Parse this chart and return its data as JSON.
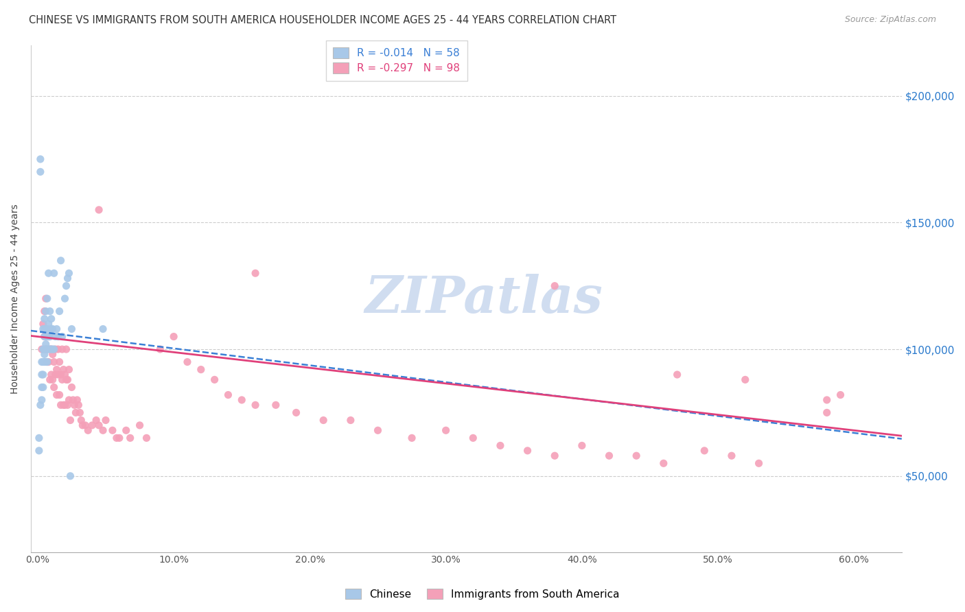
{
  "title": "CHINESE VS IMMIGRANTS FROM SOUTH AMERICA HOUSEHOLDER INCOME AGES 25 - 44 YEARS CORRELATION CHART",
  "source": "Source: ZipAtlas.com",
  "ylabel": "Householder Income Ages 25 - 44 years",
  "xlabel_ticks": [
    "0.0%",
    "10.0%",
    "20.0%",
    "30.0%",
    "40.0%",
    "50.0%",
    "60.0%"
  ],
  "xlabel_vals": [
    0.0,
    0.1,
    0.2,
    0.3,
    0.4,
    0.5,
    0.6
  ],
  "ylabel_ticks": [
    "$50,000",
    "$100,000",
    "$150,000",
    "$200,000"
  ],
  "ylabel_vals": [
    50000,
    100000,
    150000,
    200000
  ],
  "xlim": [
    -0.005,
    0.635
  ],
  "ylim": [
    20000,
    220000
  ],
  "chinese_R": -0.014,
  "chinese_N": 58,
  "sa_R": -0.297,
  "sa_N": 98,
  "chinese_color": "#a8c8e8",
  "sa_color": "#f4a0b8",
  "chinese_line_color": "#3a7fd5",
  "sa_line_color": "#e0407a",
  "watermark_color": "#d0ddf0",
  "legend_label_chinese": "Chinese",
  "legend_label_sa": "Immigrants from South America",
  "chinese_x": [
    0.001,
    0.001,
    0.002,
    0.002,
    0.002,
    0.003,
    0.003,
    0.003,
    0.003,
    0.004,
    0.004,
    0.004,
    0.004,
    0.004,
    0.005,
    0.005,
    0.005,
    0.005,
    0.005,
    0.005,
    0.006,
    0.006,
    0.006,
    0.006,
    0.006,
    0.006,
    0.007,
    0.007,
    0.007,
    0.007,
    0.007,
    0.008,
    0.008,
    0.008,
    0.008,
    0.009,
    0.009,
    0.009,
    0.01,
    0.01,
    0.01,
    0.011,
    0.011,
    0.012,
    0.012,
    0.013,
    0.014,
    0.015,
    0.016,
    0.017,
    0.018,
    0.02,
    0.021,
    0.022,
    0.023,
    0.024,
    0.025,
    0.048
  ],
  "chinese_y": [
    60000,
    65000,
    78000,
    170000,
    175000,
    80000,
    85000,
    90000,
    95000,
    85000,
    90000,
    95000,
    100000,
    108000,
    95000,
    98000,
    100000,
    105000,
    108000,
    112000,
    95000,
    100000,
    102000,
    105000,
    108000,
    115000,
    95000,
    100000,
    105000,
    108000,
    120000,
    100000,
    105000,
    110000,
    130000,
    100000,
    105000,
    115000,
    100000,
    108000,
    112000,
    100000,
    108000,
    100000,
    130000,
    105000,
    108000,
    105000,
    115000,
    135000,
    105000,
    120000,
    125000,
    128000,
    130000,
    50000,
    108000,
    108000
  ],
  "sa_x": [
    0.003,
    0.004,
    0.005,
    0.005,
    0.006,
    0.006,
    0.007,
    0.007,
    0.008,
    0.008,
    0.009,
    0.009,
    0.01,
    0.01,
    0.011,
    0.011,
    0.012,
    0.012,
    0.013,
    0.013,
    0.014,
    0.014,
    0.015,
    0.015,
    0.016,
    0.016,
    0.017,
    0.017,
    0.018,
    0.018,
    0.019,
    0.019,
    0.02,
    0.02,
    0.021,
    0.021,
    0.022,
    0.022,
    0.023,
    0.023,
    0.024,
    0.025,
    0.026,
    0.027,
    0.028,
    0.029,
    0.03,
    0.031,
    0.032,
    0.033,
    0.035,
    0.037,
    0.04,
    0.043,
    0.045,
    0.048,
    0.05,
    0.055,
    0.058,
    0.06,
    0.065,
    0.068,
    0.075,
    0.08,
    0.09,
    0.1,
    0.11,
    0.12,
    0.13,
    0.14,
    0.15,
    0.16,
    0.175,
    0.19,
    0.21,
    0.23,
    0.25,
    0.275,
    0.3,
    0.32,
    0.34,
    0.36,
    0.38,
    0.4,
    0.42,
    0.44,
    0.46,
    0.49,
    0.51,
    0.53,
    0.045,
    0.16,
    0.38,
    0.58,
    0.59,
    0.58,
    0.47,
    0.52
  ],
  "sa_y": [
    100000,
    110000,
    105000,
    115000,
    100000,
    120000,
    95000,
    105000,
    95000,
    105000,
    88000,
    100000,
    90000,
    100000,
    88000,
    98000,
    85000,
    95000,
    90000,
    100000,
    82000,
    92000,
    90000,
    100000,
    82000,
    95000,
    78000,
    90000,
    88000,
    100000,
    78000,
    92000,
    78000,
    90000,
    88000,
    100000,
    78000,
    88000,
    80000,
    92000,
    72000,
    85000,
    80000,
    78000,
    75000,
    80000,
    78000,
    75000,
    72000,
    70000,
    70000,
    68000,
    70000,
    72000,
    70000,
    68000,
    72000,
    68000,
    65000,
    65000,
    68000,
    65000,
    70000,
    65000,
    100000,
    105000,
    95000,
    92000,
    88000,
    82000,
    80000,
    78000,
    78000,
    75000,
    72000,
    72000,
    68000,
    65000,
    68000,
    65000,
    62000,
    60000,
    58000,
    62000,
    58000,
    58000,
    55000,
    60000,
    58000,
    55000,
    155000,
    130000,
    125000,
    75000,
    82000,
    80000,
    90000,
    88000
  ]
}
